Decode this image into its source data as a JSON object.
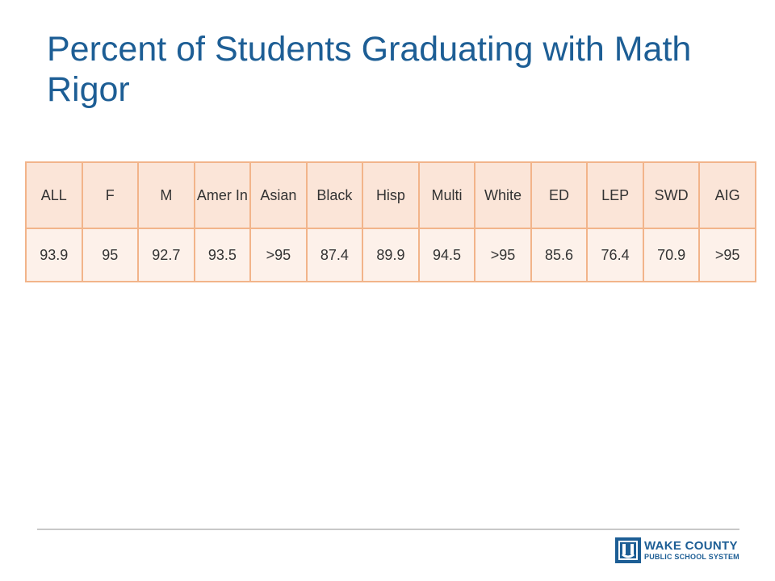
{
  "slide": {
    "title": "Percent of Students Graduating with Math Rigor"
  },
  "table": {
    "headers": [
      "ALL",
      "F",
      "M",
      "Amer In",
      "Asian",
      "Black",
      "Hisp",
      "Multi",
      "White",
      "ED",
      "LEP",
      "SWD",
      "AIG"
    ],
    "values": [
      "93.9",
      "95",
      "92.7",
      "93.5",
      ">95",
      "87.4",
      "89.9",
      "94.5",
      ">95",
      "85.6",
      "76.4",
      "70.9",
      ">95"
    ]
  },
  "footer": {
    "brand_line1": "WAKE COUNTY",
    "brand_line2": "PUBLIC SCHOOL SYSTEM",
    "accent_color": "#1d5e95",
    "table_border_color": "#f2b48a",
    "rule_color": "#c8c8c8"
  }
}
